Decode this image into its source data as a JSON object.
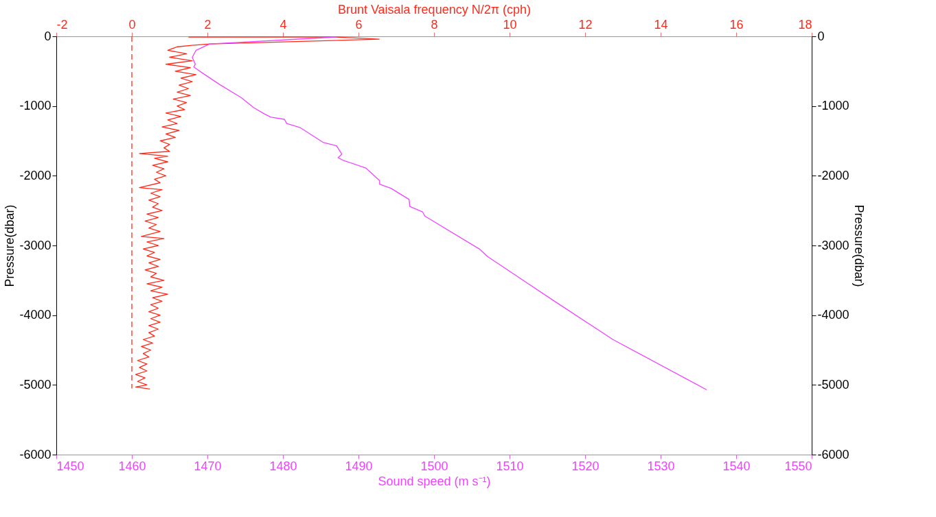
{
  "chart_data": {
    "type": "line",
    "xlabel": "Sound speed (m s⁻¹)",
    "x2label": "Brunt Vaisala frequency N/2π (cph)",
    "ylabel": "Pressure(dbar)",
    "y2label": "Pressure(dbar)",
    "xlim": [
      1450,
      1550
    ],
    "xticks": [
      1450,
      1460,
      1470,
      1480,
      1490,
      1500,
      1510,
      1520,
      1530,
      1540,
      1550
    ],
    "x2lim": [
      -2,
      18
    ],
    "x2ticks": [
      -2,
      0,
      2,
      4,
      6,
      8,
      10,
      12,
      14,
      16,
      18
    ],
    "ylim": [
      -6000,
      0
    ],
    "yticks": [
      -6000,
      -5000,
      -4000,
      -3000,
      -2000,
      -1000,
      0
    ],
    "y2lim": [
      -6000,
      0
    ],
    "y2ticks": [
      -6000,
      -5000,
      -4000,
      -3000,
      -2000,
      -1000,
      0
    ],
    "series": [
      {
        "color": "#ff2a1a",
        "axis": "x2",
        "x": [
          1.5,
          5.4,
          6.55,
          2.06,
          1.59,
          1.2,
          0.95,
          1.45,
          1.0,
          1.6,
          0.9,
          1.55,
          1.15,
          1.7,
          1.3,
          1.6,
          1.25,
          1.5,
          1.2,
          1.55,
          1.1,
          1.45,
          1.2,
          1.4,
          0.9,
          1.3,
          0.95,
          1.2,
          0.8,
          1.25,
          0.9,
          1.15,
          0.75,
          1.0,
          0.85,
          1.0,
          0.2,
          0.95,
          0.6,
          0.95,
          0.55,
          0.85,
          0.65,
          0.9,
          0.6,
          0.75,
          0.2,
          0.8,
          0.5,
          0.75,
          0.45,
          0.7,
          0.55,
          0.8,
          0.4,
          0.7,
          0.35,
          0.65,
          0.45,
          0.75,
          0.25,
          0.85,
          0.4,
          0.7,
          0.3,
          0.6,
          0.4,
          0.75,
          0.45,
          0.7,
          0.35,
          0.65,
          0.5,
          0.85,
          0.4,
          0.8,
          0.5,
          0.95,
          0.55,
          0.8,
          0.5,
          0.7,
          0.45,
          0.75,
          0.5,
          0.75,
          0.45,
          0.7,
          0.45,
          0.6,
          0.3,
          0.55,
          0.25,
          0.5,
          0.3,
          0.45,
          0.15,
          0.4,
          0.2,
          0.4,
          0.1,
          0.35,
          0.15,
          0.4,
          0.1,
          0.48
        ],
        "values": [
          -10,
          -10,
          -40,
          -110,
          -130,
          -150,
          -200,
          -250,
          -300,
          -350,
          -400,
          -450,
          -500,
          -550,
          -600,
          -650,
          -700,
          -750,
          -800,
          -850,
          -900,
          -950,
          -1000,
          -1050,
          -1100,
          -1150,
          -1200,
          -1250,
          -1300,
          -1350,
          -1400,
          -1450,
          -1500,
          -1550,
          -1600,
          -1650,
          -1680,
          -1720,
          -1750,
          -1800,
          -1850,
          -1900,
          -1950,
          -2000,
          -2050,
          -2100,
          -2170,
          -2200,
          -2250,
          -2300,
          -2350,
          -2400,
          -2450,
          -2500,
          -2550,
          -2600,
          -2650,
          -2700,
          -2750,
          -2800,
          -2870,
          -2900,
          -2950,
          -3000,
          -3050,
          -3100,
          -3150,
          -3200,
          -3250,
          -3300,
          -3350,
          -3400,
          -3450,
          -3500,
          -3550,
          -3600,
          -3650,
          -3700,
          -3750,
          -3800,
          -3850,
          -3900,
          -3950,
          -4000,
          -4050,
          -4100,
          -4150,
          -4200,
          -4250,
          -4300,
          -4350,
          -4400,
          -4450,
          -4500,
          -4550,
          -4600,
          -4650,
          -4700,
          -4750,
          -4800,
          -4850,
          -4900,
          -4950,
          -5000,
          -5030,
          -5060
        ]
      },
      {
        "color": "#ff2a1a",
        "axis": "x2",
        "line_style": "dashed",
        "x": [
          0,
          0
        ],
        "values": [
          0,
          -5050
        ]
      },
      {
        "color": "#ee44ff",
        "x": [
          1487.1,
          1470.3,
          1468.5,
          1468.0,
          1468.4,
          1468.2,
          1469.4,
          1471.6,
          1474.5,
          1476.1,
          1477.5,
          1478.4,
          1480.2,
          1480.5,
          1482.3,
          1485.3,
          1487.1,
          1487.8,
          1487.3,
          1488.0,
          1491.0,
          1492.8,
          1492.8,
          1494.3,
          1496.7,
          1496.8,
          1498.5,
          1498.8,
          1506.0,
          1507.1,
          1516.1,
          1523.7,
          1536.1
        ],
        "values": [
          -10,
          -110,
          -200,
          -300,
          -400,
          -440,
          -530,
          -690,
          -880,
          -1020,
          -1110,
          -1160,
          -1190,
          -1250,
          -1310,
          -1520,
          -1570,
          -1690,
          -1740,
          -1780,
          -1890,
          -2070,
          -2120,
          -2180,
          -2340,
          -2440,
          -2520,
          -2580,
          -3050,
          -3160,
          -3810,
          -4350,
          -5070
        ]
      }
    ]
  }
}
